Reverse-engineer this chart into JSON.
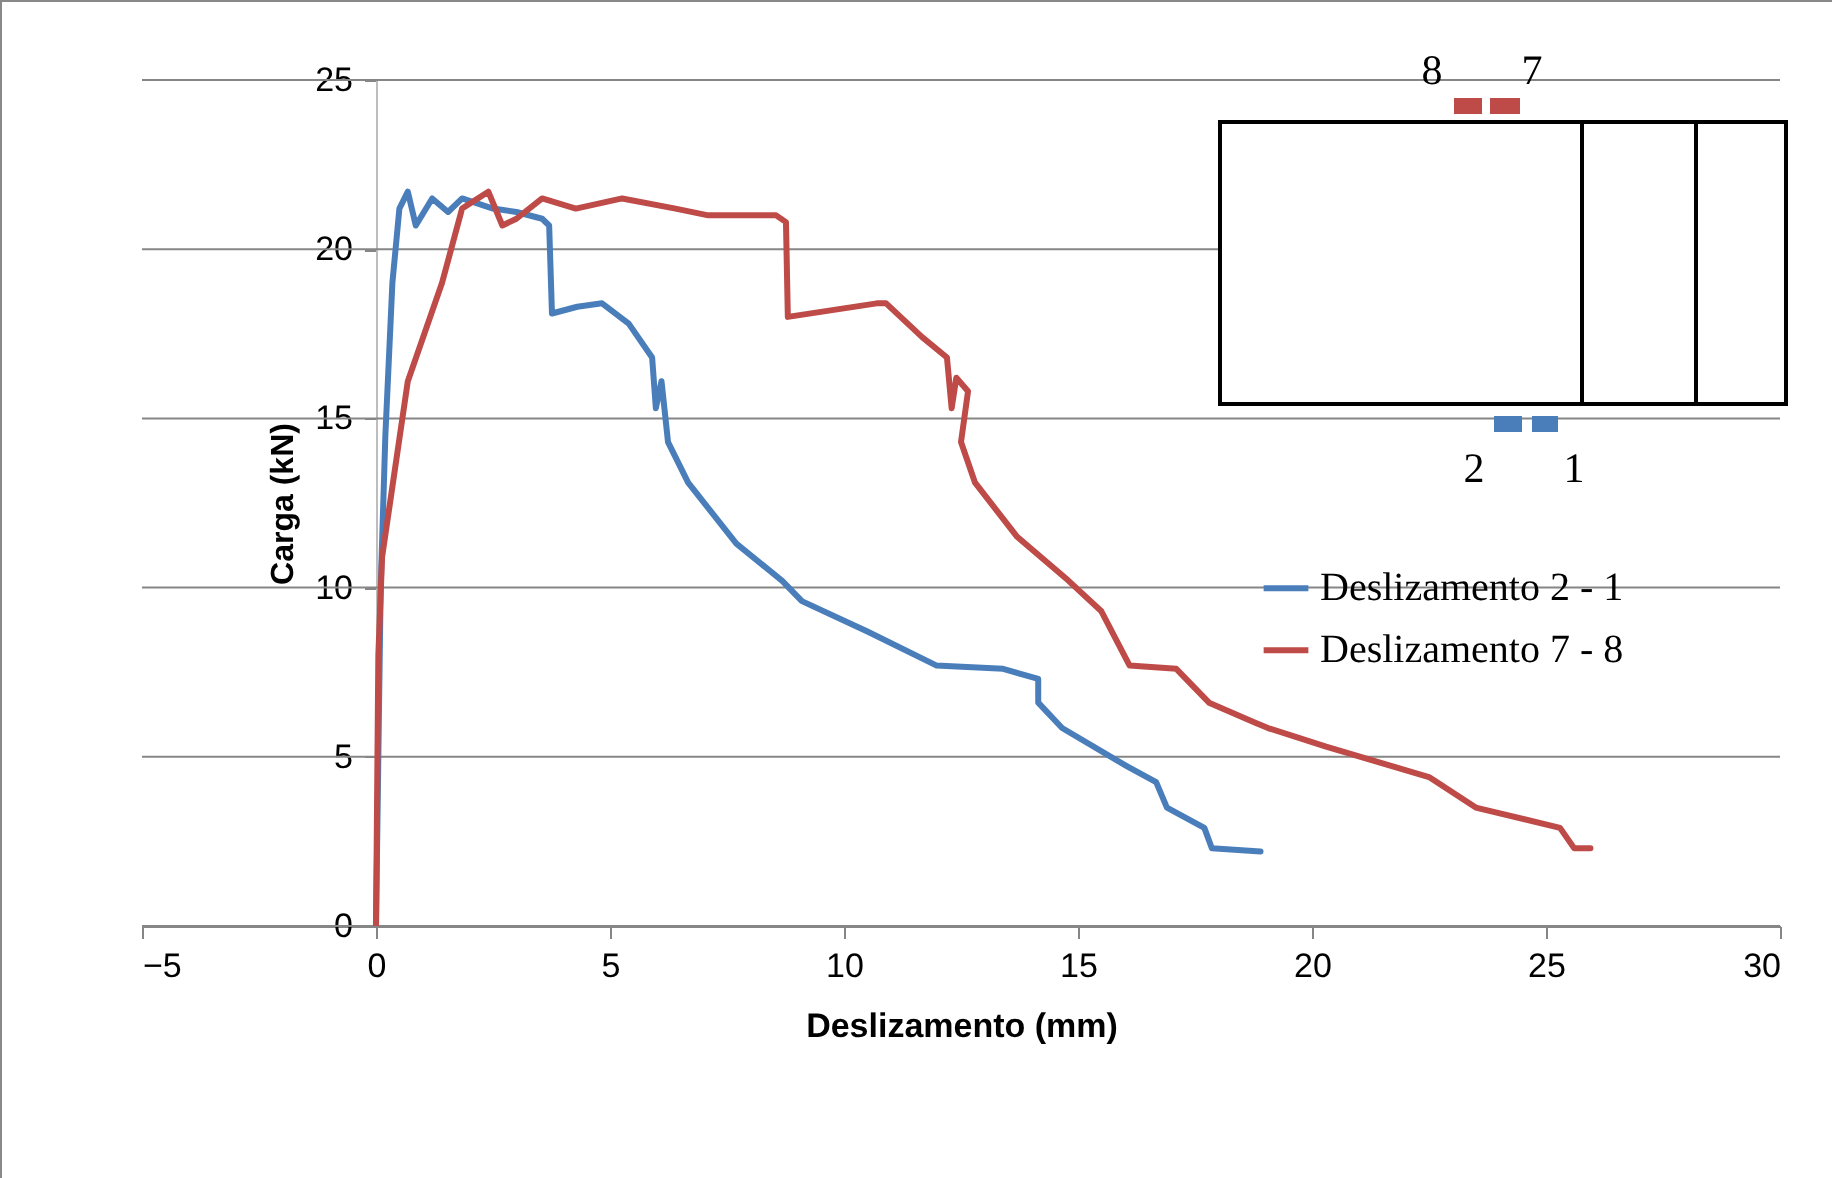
{
  "chart_data": {
    "type": "line",
    "xlabel": "Deslizamento (mm)",
    "ylabel": "Carga (kN)",
    "xlim": [
      -5,
      30
    ],
    "xticks": [
      -5,
      0,
      5,
      10,
      15,
      20,
      25,
      30
    ],
    "ylim": [
      0,
      25
    ],
    "yticks": [
      0,
      5,
      10,
      15,
      20,
      25
    ],
    "grid": "y",
    "legend": "right",
    "line_style": "solid",
    "marker": "none",
    "annotations": [
      "8",
      "7",
      "2",
      "1"
    ],
    "series": [
      {
        "name": "Deslizamento 2 - 1",
        "color": "#4a7ebb",
        "x": [
          0,
          0.05,
          0.1,
          0.2,
          0.35,
          0.5,
          0.68,
          0.85,
          1.2,
          1.54,
          1.84,
          2.5,
          3.0,
          3.55,
          3.7,
          3.76,
          4.3,
          4.83,
          5.4,
          5.9,
          5.98,
          6.1,
          6.24,
          6.67,
          7.7,
          8.68,
          9.1,
          10.5,
          11.97,
          13.4,
          14.15,
          14.15,
          14.66,
          16.07,
          16.67,
          16.9,
          17.7,
          17.86,
          18.9
        ],
        "values": [
          0,
          5,
          10,
          14.5,
          19,
          21.2,
          21.7,
          20.7,
          21.5,
          21.1,
          21.5,
          21.2,
          21.1,
          20.9,
          20.7,
          18.1,
          18.3,
          18.4,
          17.8,
          16.8,
          15.3,
          16.1,
          14.3,
          13.1,
          11.3,
          10.2,
          9.6,
          8.7,
          7.7,
          7.6,
          7.3,
          6.6,
          5.85,
          4.7,
          4.25,
          3.5,
          2.9,
          2.3,
          2.2
        ]
      },
      {
        "name": "Deslizamento 7 - 8",
        "color": "#be4b48",
        "x": [
          0,
          0.05,
          0.13,
          0.68,
          1.41,
          1.84,
          2.4,
          2.7,
          3.0,
          3.55,
          4.27,
          5.26,
          6.4,
          7.1,
          8.55,
          8.76,
          8.8,
          10.7,
          10.9,
          11.67,
          12.2,
          12.3,
          12.4,
          12.65,
          12.5,
          12.8,
          13.7,
          14.8,
          15.5,
          16.1,
          17.1,
          17.8,
          18.8,
          19.06,
          20.3,
          22.5,
          23.5,
          25.3,
          25.6,
          25.95
        ],
        "values": [
          0,
          8,
          10.9,
          16.1,
          19.0,
          21.2,
          21.7,
          20.7,
          20.9,
          21.5,
          21.2,
          21.5,
          21.2,
          21.0,
          21.0,
          20.8,
          18.0,
          18.4,
          18.4,
          17.4,
          16.8,
          15.3,
          16.2,
          15.8,
          14.3,
          13.1,
          11.5,
          10.2,
          9.3,
          7.7,
          7.6,
          6.6,
          6.0,
          5.85,
          5.3,
          4.4,
          3.5,
          2.9,
          2.3,
          2.3
        ]
      }
    ]
  }
}
